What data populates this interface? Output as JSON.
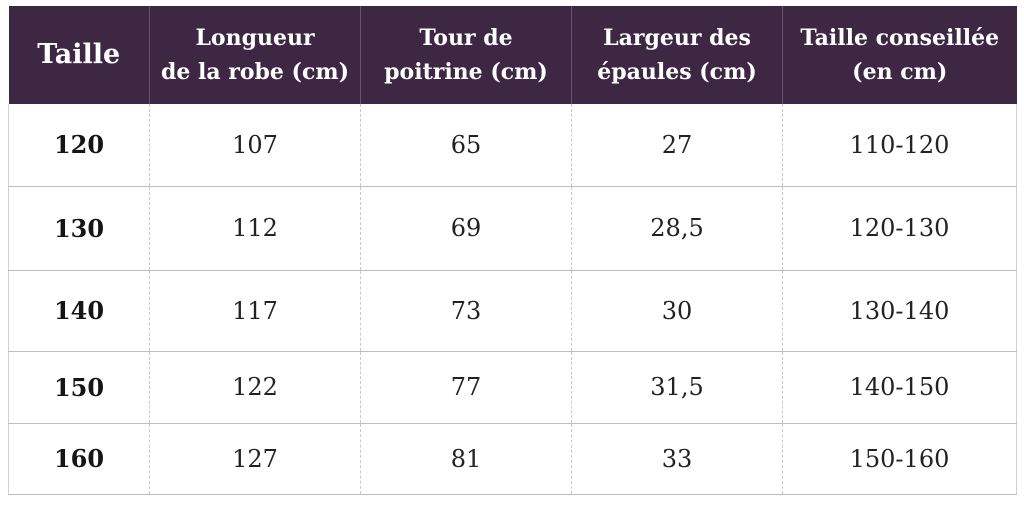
{
  "table": {
    "headers": [
      [
        "Taille"
      ],
      [
        "Longueur",
        "de la robe (cm)"
      ],
      [
        "Tour de",
        "poitrine (cm)"
      ],
      [
        "Largeur des",
        "épaules (cm)"
      ],
      [
        "Taille conseillée",
        "(en cm)"
      ]
    ],
    "rows": [
      [
        "120",
        "107",
        "65",
        "27",
        "110-120"
      ],
      [
        "130",
        "112",
        "69",
        "28,5",
        "120-130"
      ],
      [
        "140",
        "117",
        "73",
        "30",
        "130-140"
      ],
      [
        "150",
        "122",
        "77",
        "31,5",
        "140-150"
      ],
      [
        "160",
        "127",
        "81",
        "33",
        "150-160"
      ]
    ]
  },
  "colors": {
    "header_background": "#3d2743",
    "header_text": "#ffffff",
    "body_text": "#222222",
    "grid_line": "#bdbdbd"
  }
}
